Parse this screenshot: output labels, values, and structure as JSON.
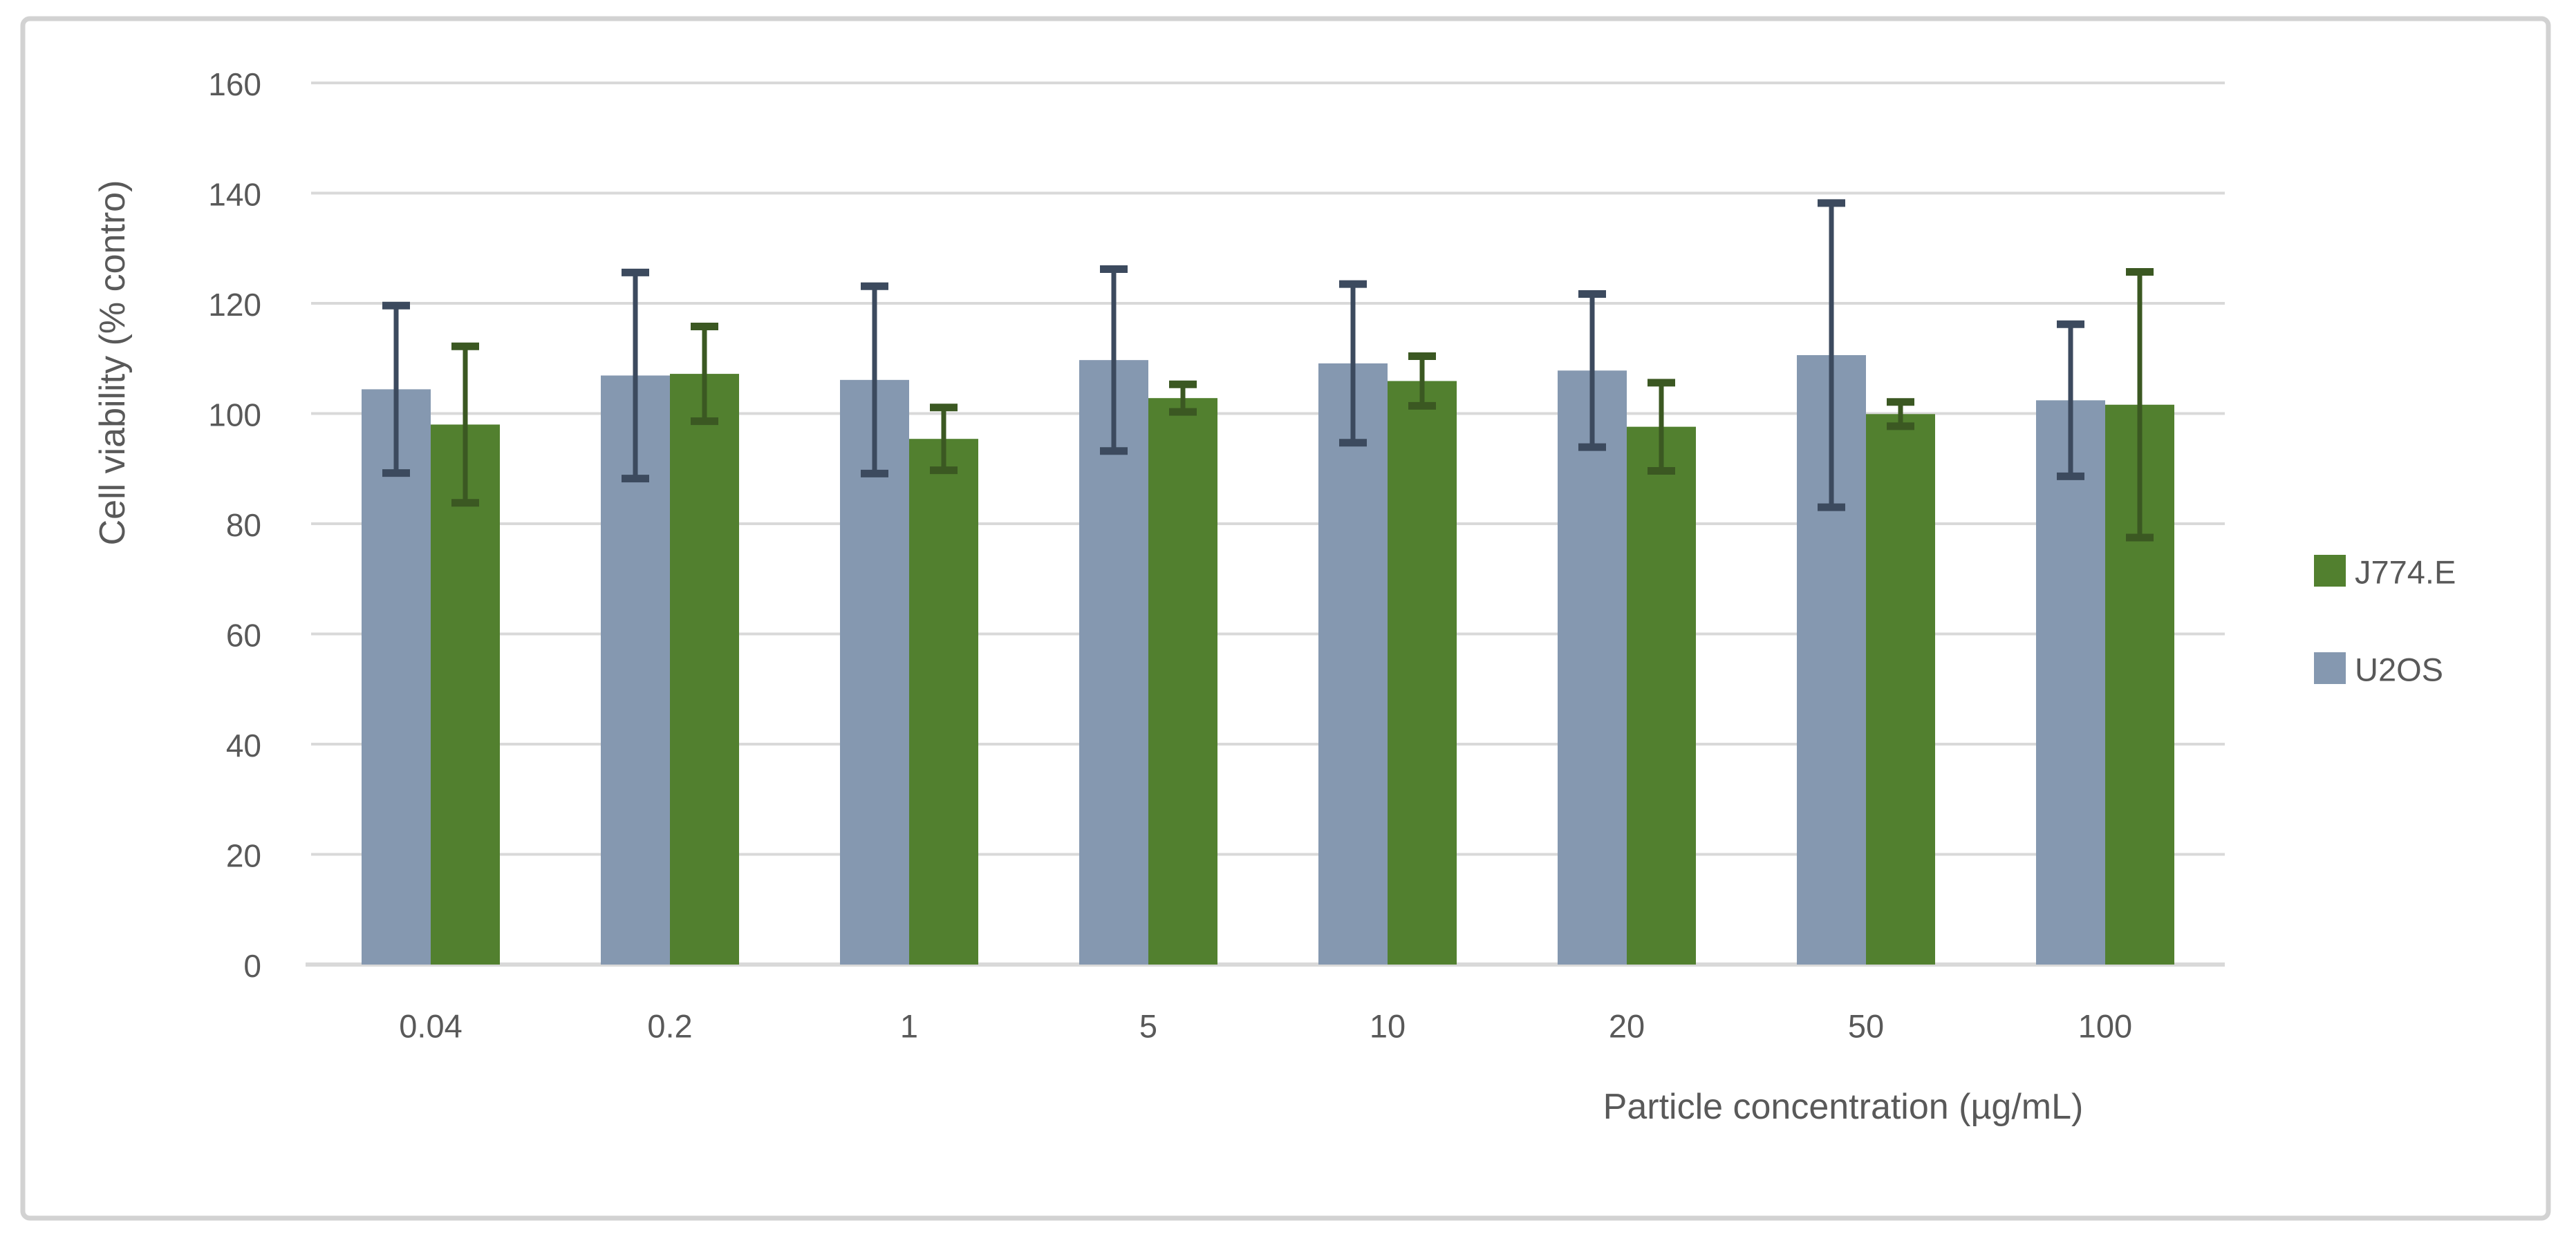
{
  "chart_data": {
    "type": "bar",
    "title": "",
    "xlabel": "Particle concentration (µg/mL)",
    "ylabel": "Cell viability (% contro)",
    "categories": [
      "0.04",
      "0.2",
      "1",
      "5",
      "10",
      "20",
      "50",
      "100"
    ],
    "series": [
      {
        "name": "U2OS",
        "color": "#8598B0",
        "error_color": "#3C4A5E",
        "values": [
          104.4,
          106.9,
          106.1,
          109.7,
          109.1,
          107.8,
          110.6,
          102.4
        ],
        "errors": [
          15.2,
          18.7,
          17.0,
          16.5,
          14.4,
          13.9,
          27.6,
          13.8
        ]
      },
      {
        "name": "J774.E",
        "color": "#52802F",
        "error_color": "#3B5822",
        "values": [
          98.0,
          107.2,
          95.4,
          102.8,
          105.9,
          97.6,
          99.9,
          101.6
        ],
        "errors": [
          14.2,
          8.6,
          5.7,
          2.5,
          4.5,
          8.0,
          2.2,
          24.1
        ]
      }
    ],
    "ylim": [
      0,
      160
    ],
    "yticks": [
      0,
      20,
      40,
      60,
      80,
      100,
      120,
      140,
      160
    ],
    "grid": true,
    "error_bars": true,
    "legend_position": "right",
    "legend_order": [
      "J774.E",
      "U2OS"
    ]
  },
  "styles": {
    "background": "#FFFFFF",
    "text_color": "#595959",
    "grid_color": "#D9D9D9",
    "axis_color": "#D9D9D9",
    "frame_border_color": "#D2D2D2",
    "bar_colors": {
      "U2OS": "#8598B0",
      "J774.E": "#52802F"
    },
    "error_colors": {
      "U2OS": "#3C4A5E",
      "J774.E": "#3B5822"
    }
  }
}
